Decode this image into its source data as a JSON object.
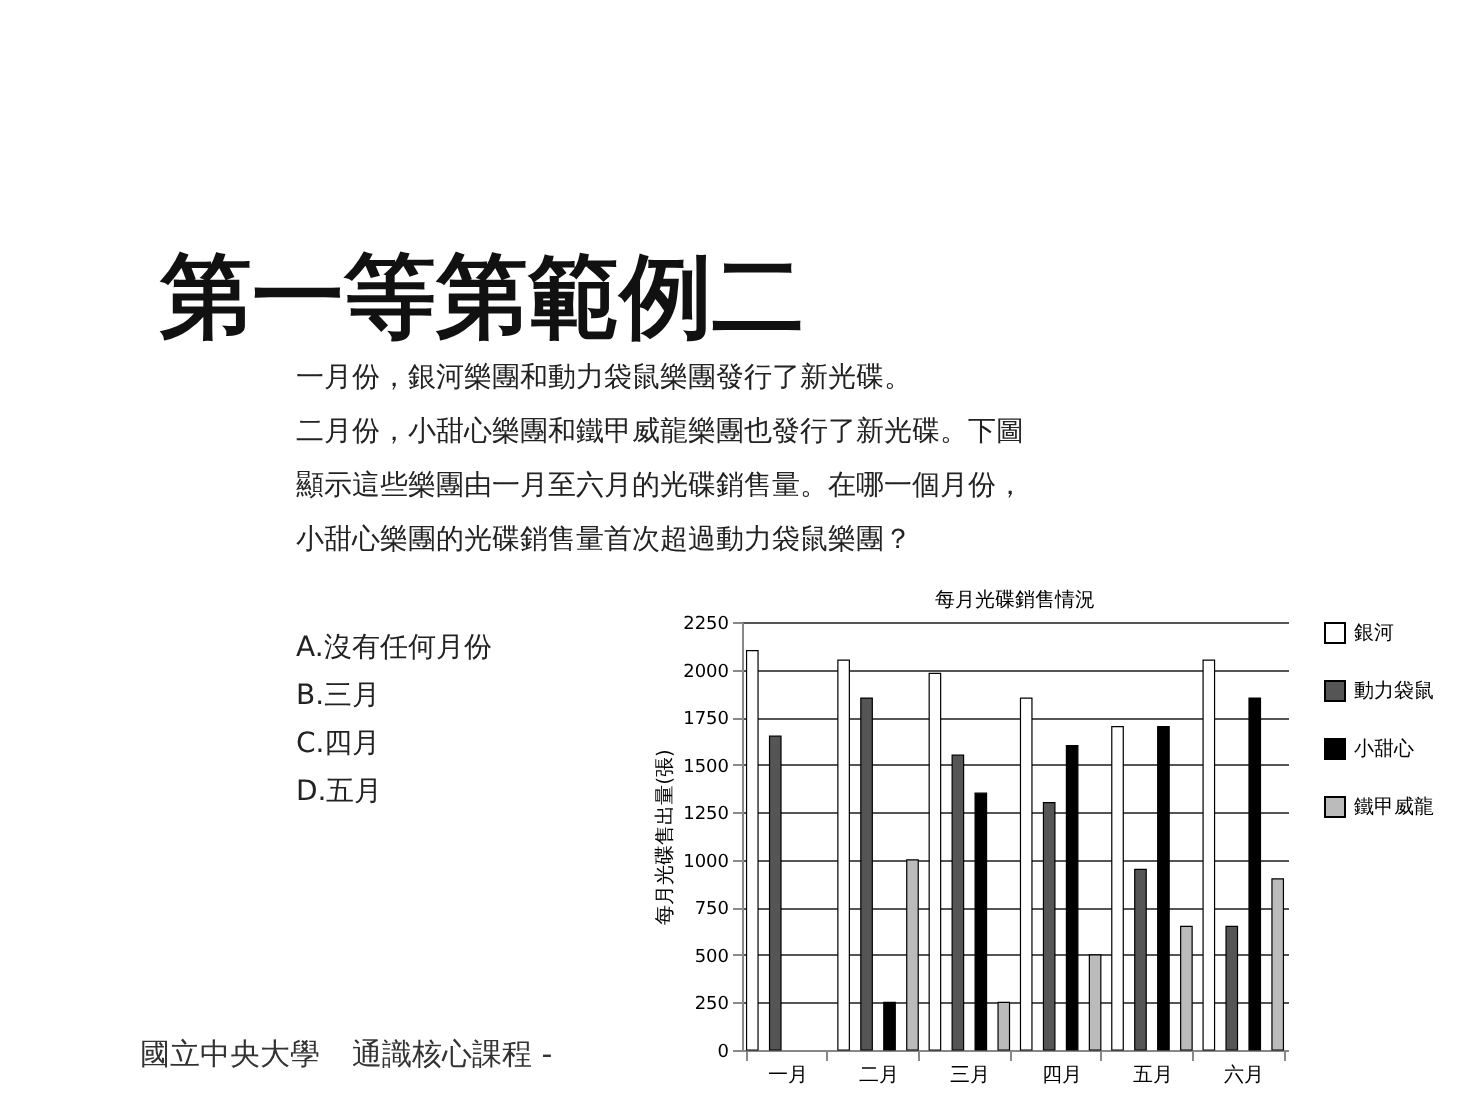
{
  "chart_data": {
    "type": "bar",
    "title": "第一等第範例二",
    "subtitle": "每月光碟銷售情況",
    "ylabel": "每月光碟售出量(張)",
    "annotations": [
      "一月份，銀河樂團和動力袋鼠樂團發行了新光碟。",
      "二月份，小甜心樂團和鐵甲威龍樂團也發行了新光碟。下圖顯示這些樂團由一月至六月的光碟銷售量。在哪一個月份，小甜心樂團的光碟銷售量首次超過動力袋鼠樂團？",
      "A.沒有任何月份",
      "B.三月",
      "C.四月",
      "D.五月",
      "國立中央大學",
      "通識核心課程 -"
    ],
    "categories": [
      "一月",
      "二月",
      "三月",
      "四月",
      "五月",
      "六月"
    ],
    "series": [
      {
        "name": "銀河",
        "color": "#ffffff",
        "values": [
          2100,
          2050,
          1980,
          1850,
          1700,
          2050
        ]
      },
      {
        "name": "動力袋鼠",
        "color": "#555555",
        "values": [
          1650,
          1850,
          1550,
          1300,
          950,
          650
        ]
      },
      {
        "name": "小甜心",
        "color": "#000000",
        "values": [
          null,
          250,
          1350,
          1600,
          1700,
          1850
        ]
      },
      {
        "name": "鐵甲威龍",
        "color": "#bbbbbb",
        "values": [
          null,
          1000,
          250,
          500,
          650,
          900
        ]
      }
    ],
    "ylim": [
      0,
      2250
    ],
    "yticks": [
      0,
      250,
      500,
      750,
      {
        "value": 1000,
        "label": "1000"
      },
      {
        "value": 1250,
        "label": "1250"
      },
      {
        "value": 1500,
        "label": "1500"
      },
      {
        "value": 1750,
        "label": "1750"
      },
      {
        "value": 2000,
        "label": "2000"
      },
      {
        "value": 2250,
        "label": "2250"
      }
    ],
    "grid": "y",
    "legend": "right"
  }
}
